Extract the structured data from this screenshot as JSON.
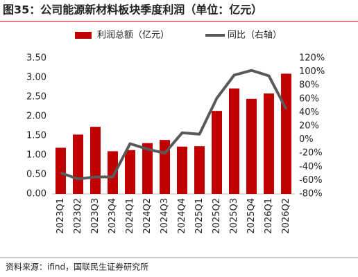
{
  "chart_data": {
    "type": "bar",
    "title": "图35：公司能源新材料板块季度利润（单位：亿元）",
    "source": "资料来源：ifind，国联民生证券研究所",
    "categories": [
      "2023Q1",
      "2023Q2",
      "2023Q3",
      "2023Q4",
      "2024Q1",
      "2024Q2",
      "2024Q3",
      "2024Q4",
      "2025Q1",
      "2025Q2",
      "2025Q3",
      "2025Q4",
      "2026Q1",
      "2026Q2"
    ],
    "series": [
      {
        "name": "利润总额（亿元）",
        "type": "bar",
        "color": "#c00000",
        "values": [
          1.19,
          1.53,
          1.73,
          1.1,
          1.13,
          1.31,
          1.39,
          1.22,
          1.23,
          2.14,
          2.72,
          2.45,
          2.59,
          3.1
        ]
      },
      {
        "name": "同比（右轴）",
        "type": "line",
        "axis": "y2",
        "color": "#595959",
        "values": [
          -49,
          -58,
          -55,
          -55,
          -6,
          -14,
          -20,
          10,
          8,
          61,
          95,
          102,
          94,
          45
        ]
      }
    ],
    "ylim": [
      0,
      3.5
    ],
    "yticks": [
      {
        "value": 0,
        "label": "0.00"
      },
      {
        "value": 0.5,
        "label": "0.50"
      },
      {
        "value": 1,
        "label": "1.00"
      },
      {
        "value": 1.5,
        "label": "1.50"
      },
      {
        "value": 2,
        "label": "2.00"
      },
      {
        "value": 2.5,
        "label": "2.50"
      },
      {
        "value": 3,
        "label": "3.00"
      },
      {
        "value": 3.5,
        "label": "3.50"
      }
    ],
    "y2lim": [
      -80,
      120
    ],
    "y2ticks": [
      {
        "value": -80,
        "label": "-80%"
      },
      {
        "value": -60,
        "label": "-60%"
      },
      {
        "value": -40,
        "label": "-40%"
      },
      {
        "value": -20,
        "label": "-20%"
      },
      {
        "value": 0,
        "label": "0%"
      },
      {
        "value": 20,
        "label": "20%"
      },
      {
        "value": 40,
        "label": "40%"
      },
      {
        "value": 60,
        "label": "60%"
      },
      {
        "value": 80,
        "label": "80%"
      },
      {
        "value": 100,
        "label": "100%"
      },
      {
        "value": 120,
        "label": "120%"
      }
    ]
  }
}
